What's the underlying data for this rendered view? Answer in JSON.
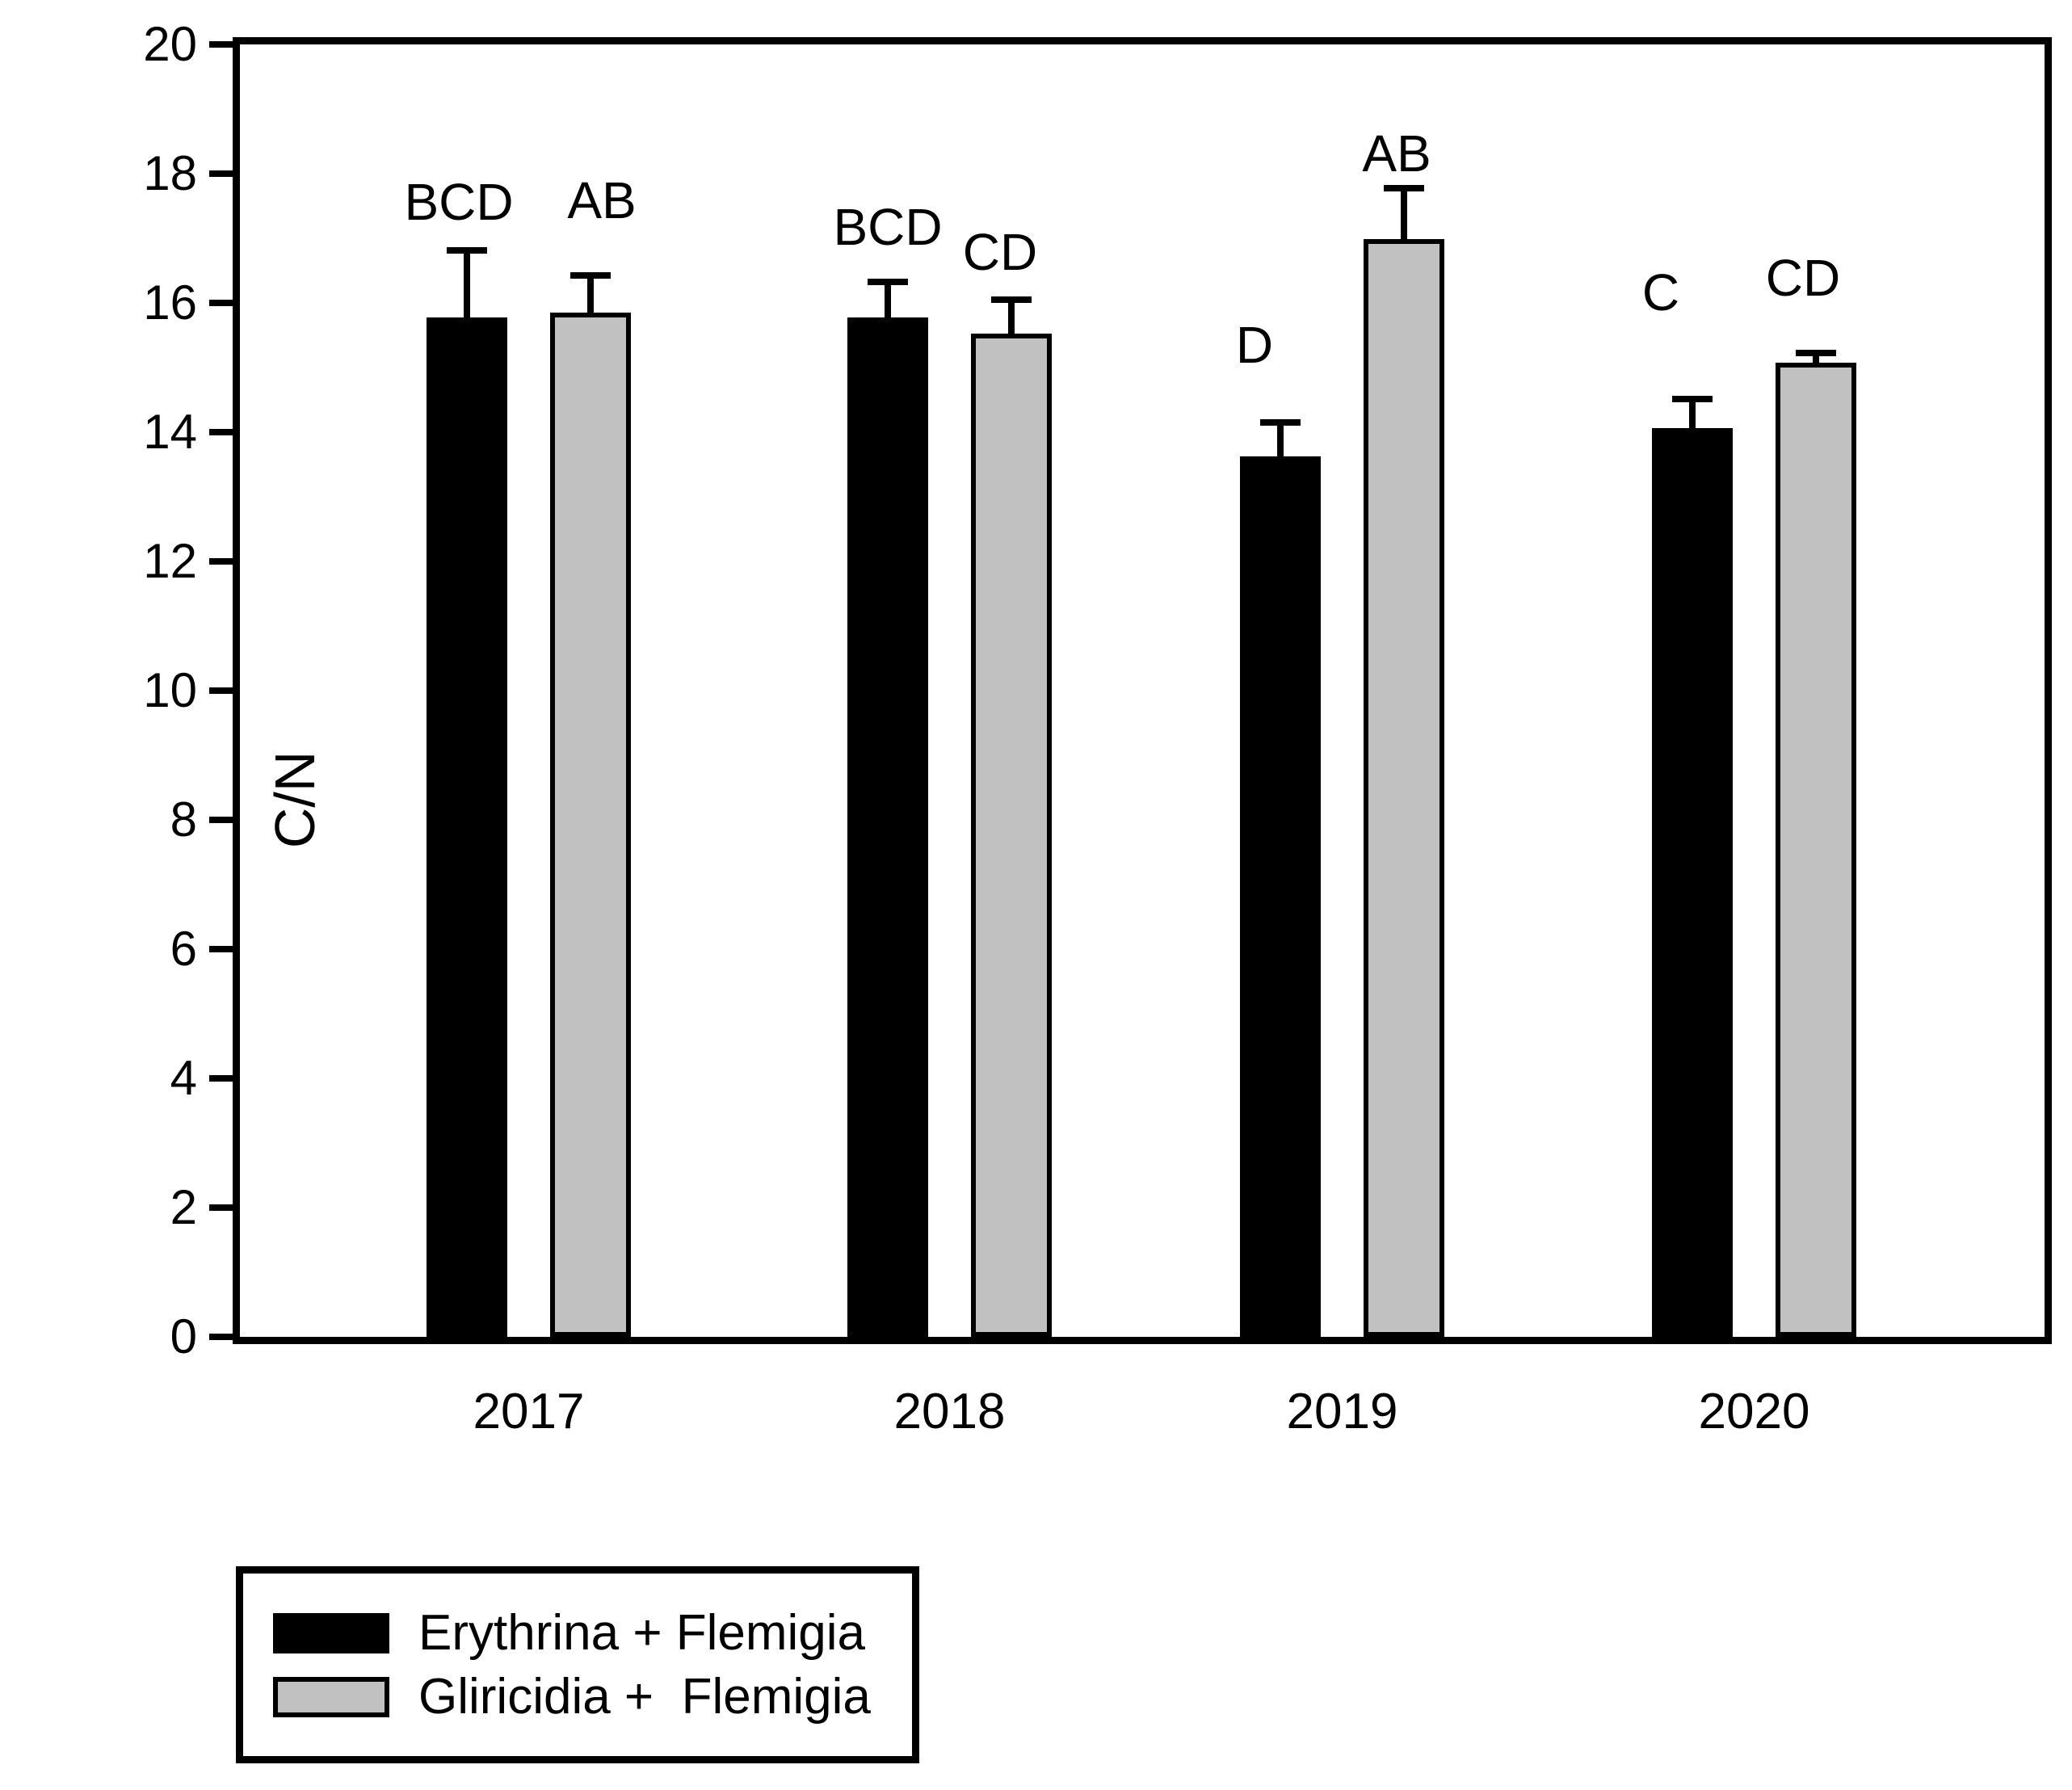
{
  "figure": {
    "background": "#ffffff",
    "text_color": "#000000"
  },
  "chart_data": {
    "type": "bar",
    "title": "",
    "xlabel": "",
    "ylabel": "C/N",
    "ylim": [
      0,
      20
    ],
    "yticks": [
      0,
      2,
      4,
      6,
      8,
      10,
      12,
      14,
      16,
      18,
      20
    ],
    "grid": false,
    "legend_position": "bottom-left",
    "error_bars": "upper-only",
    "categories": [
      "2017",
      "2018",
      "2019",
      "2020"
    ],
    "series": [
      {
        "name": "Erythrina + Flemigia",
        "color": "#000000",
        "outlined": false,
        "values": [
          15.78,
          15.77,
          13.62,
          14.06
        ],
        "errors_plus": [
          0.98,
          0.5,
          0.48,
          0.4
        ],
        "sig_letters": [
          "BCD",
          "BCD",
          "D",
          "C"
        ],
        "sig_letter_y": [
          17.25,
          16.86,
          15.04,
          15.85
        ],
        "sig_letter_dx": [
          -10,
          0,
          -32,
          -39
        ]
      },
      {
        "name": "Gliricidia +  Flemigia",
        "color": "#c1c1c1",
        "outlined": true,
        "values": [
          15.85,
          15.53,
          16.99,
          15.08
        ],
        "errors_plus": [
          0.52,
          0.47,
          0.73,
          0.09
        ],
        "sig_letters": [
          "AB",
          "CD",
          "AB",
          "CD"
        ],
        "sig_letter_y": [
          17.28,
          16.47,
          18.0,
          16.07
        ],
        "sig_letter_dx": [
          14,
          -14,
          -9,
          -16
        ]
      }
    ]
  }
}
